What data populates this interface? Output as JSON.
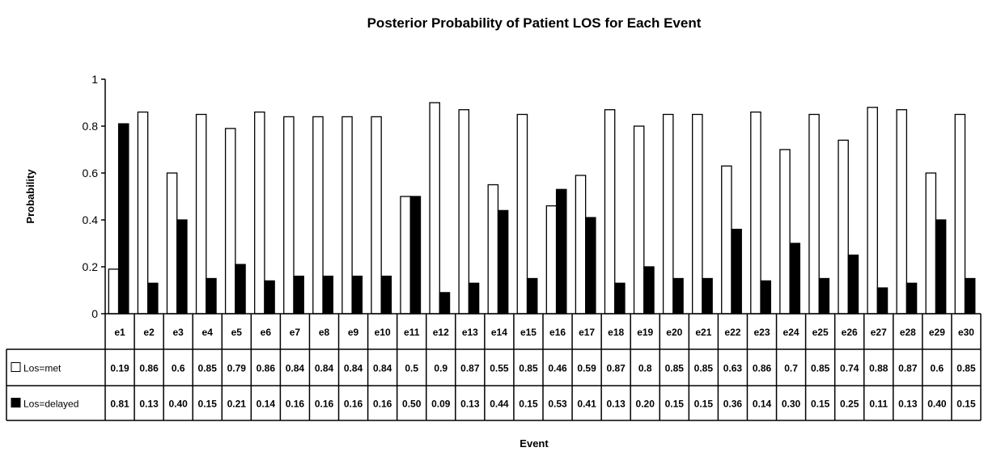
{
  "chart_data": {
    "type": "bar",
    "title": "Posterior Probability of Patient LOS for Each Event",
    "xlabel": "Event",
    "ylabel": "Probability",
    "ylim": [
      0,
      1
    ],
    "yticks": [
      "0",
      "0.2",
      "0.4",
      "0.6",
      "0.8",
      "1"
    ],
    "grid": false,
    "legend_placement": "data-table-left",
    "categories": [
      "e1",
      "e2",
      "e3",
      "e4",
      "e5",
      "e6",
      "e7",
      "e8",
      "e9",
      "e10",
      "e11",
      "e12",
      "e13",
      "e14",
      "e15",
      "e16",
      "e17",
      "e18",
      "e19",
      "e20",
      "e21",
      "e22",
      "e23",
      "e24",
      "e25",
      "e26",
      "e27",
      "e28",
      "e29",
      "e30"
    ],
    "series": [
      {
        "name": "Los=met",
        "color": "#ffffff",
        "values": [
          0.19,
          0.86,
          0.6,
          0.85,
          0.79,
          0.86,
          0.84,
          0.84,
          0.84,
          0.84,
          0.5,
          0.9,
          0.87,
          0.55,
          0.85,
          0.46,
          0.59,
          0.87,
          0.8,
          0.85,
          0.85,
          0.63,
          0.86,
          0.7,
          0.85,
          0.74,
          0.88,
          0.87,
          0.6,
          0.85
        ],
        "labels": [
          "0.19",
          "0.86",
          "0.6",
          "0.85",
          "0.79",
          "0.86",
          "0.84",
          "0.84",
          "0.84",
          "0.84",
          "0.5",
          "0.9",
          "0.87",
          "0.55",
          "0.85",
          "0.46",
          "0.59",
          "0.87",
          "0.8",
          "0.85",
          "0.85",
          "0.63",
          "0.86",
          "0.7",
          "0.85",
          "0.74",
          "0.88",
          "0.87",
          "0.6",
          "0.85"
        ]
      },
      {
        "name": "Los=delayed",
        "color": "#000000",
        "values": [
          0.81,
          0.13,
          0.4,
          0.15,
          0.21,
          0.14,
          0.16,
          0.16,
          0.16,
          0.16,
          0.5,
          0.09,
          0.13,
          0.44,
          0.15,
          0.53,
          0.41,
          0.13,
          0.2,
          0.15,
          0.15,
          0.36,
          0.14,
          0.3,
          0.15,
          0.25,
          0.11,
          0.13,
          0.4,
          0.15
        ],
        "labels": [
          "0.81",
          "0.13",
          "0.40",
          "0.15",
          "0.21",
          "0.14",
          "0.16",
          "0.16",
          "0.16",
          "0.16",
          "0.50",
          "0.09",
          "0.13",
          "0.44",
          "0.15",
          "0.53",
          "0.41",
          "0.13",
          "0.20",
          "0.15",
          "0.15",
          "0.36",
          "0.14",
          "0.30",
          "0.15",
          "0.25",
          "0.11",
          "0.13",
          "0.40",
          "0.15"
        ]
      }
    ]
  }
}
